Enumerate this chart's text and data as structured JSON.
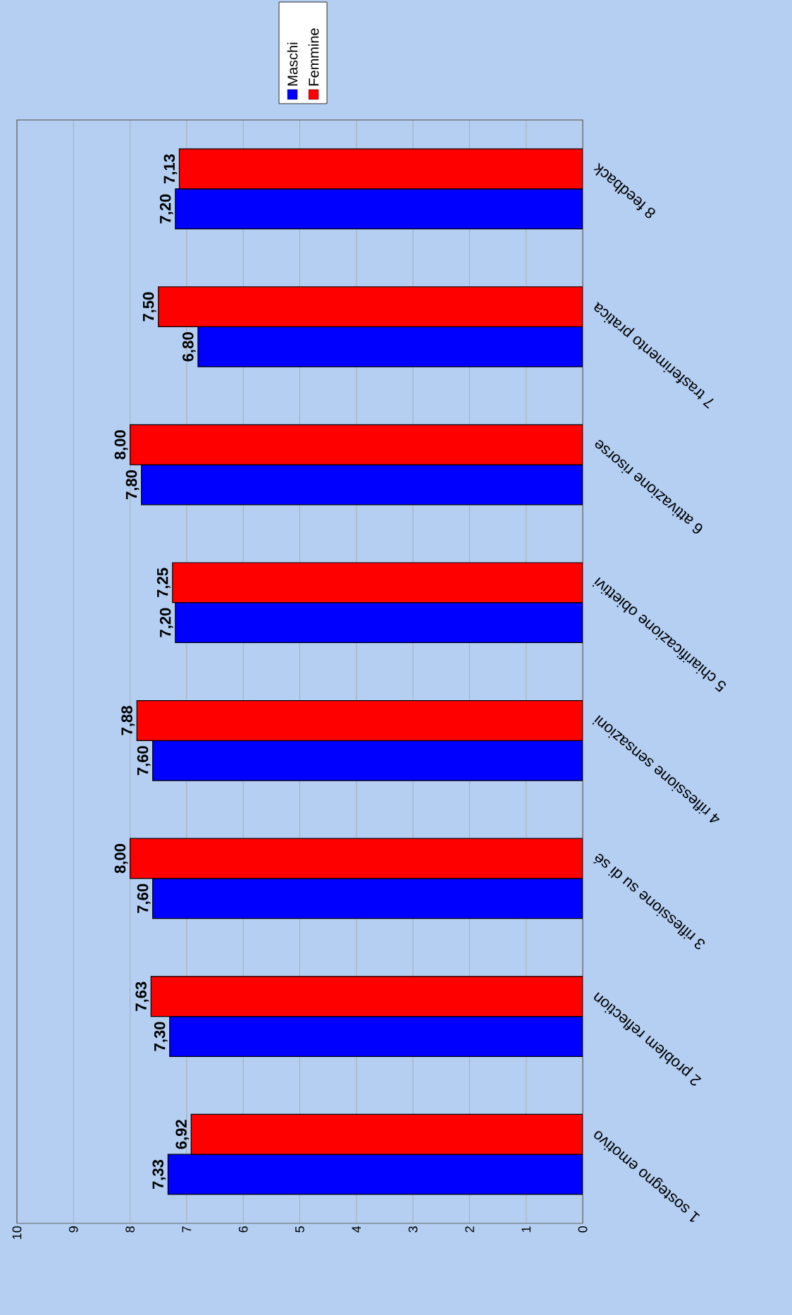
{
  "chart_data": {
    "type": "bar",
    "orientation": "horizontal",
    "categories": [
      "8 feedback",
      "7 trasferimento pratica",
      "6 attivazione risorse",
      "5 chiarificazione obiettivi",
      "4 riflessione sensazioni",
      "3 riflessione su di sé",
      "2 problem reflection",
      "1 sostegno emotivo"
    ],
    "series": [
      {
        "name": "Maschi",
        "color": "#0000ff",
        "values": [
          7.2,
          6.8,
          7.8,
          7.2,
          7.6,
          7.6,
          7.3,
          7.33
        ],
        "value_labels": [
          "7,20",
          "6,80",
          "7,80",
          "7,20",
          "7,60",
          "7,60",
          "7,30",
          "7,33"
        ]
      },
      {
        "name": "Femmine",
        "color": "#ff0000",
        "values": [
          7.13,
          7.5,
          8.0,
          7.25,
          7.88,
          8.0,
          7.63,
          6.92
        ],
        "value_labels": [
          "7,13",
          "7,50",
          "8,00",
          "7,25",
          "7,88",
          "8,00",
          "7,63",
          "6,92"
        ]
      }
    ],
    "xlim": [
      10,
      0
    ],
    "xticks": [
      10,
      9,
      8,
      7,
      6,
      5,
      4,
      3,
      2,
      1,
      0
    ],
    "grid": "x",
    "legend": "top"
  }
}
